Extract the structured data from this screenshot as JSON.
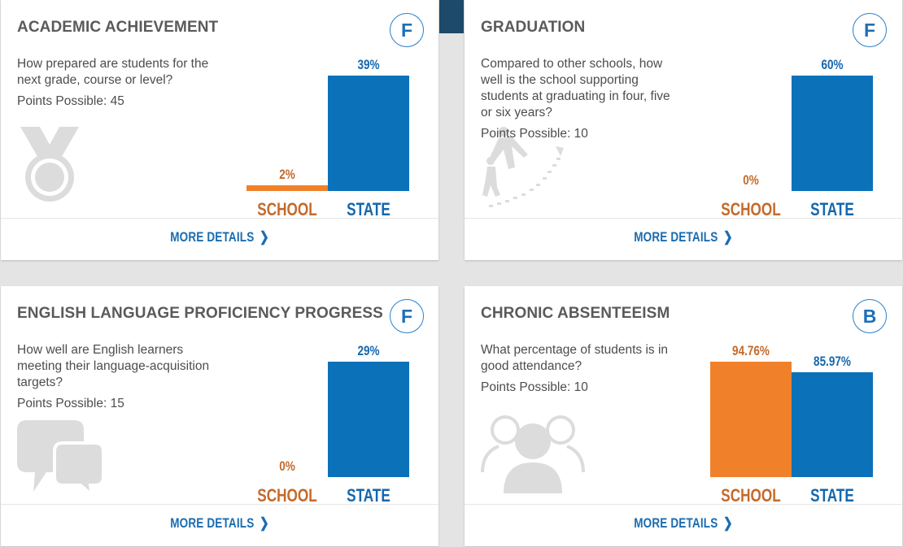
{
  "cards": [
    {
      "title": "ACADEMIC ACHIEVEMENT",
      "grade": "F",
      "description": "How prepared are students for the next grade, course or level?",
      "points": "Points Possible: 45",
      "icon": "medal-icon",
      "more_label": "MORE DETAILS",
      "chart_data": {
        "type": "bar",
        "categories": [
          "SCHOOL",
          "STATE"
        ],
        "values": [
          2,
          39
        ],
        "value_labels": [
          "2%",
          "39%"
        ],
        "unit": "%",
        "colors": [
          "#f0812a",
          "#0b71b9"
        ]
      }
    },
    {
      "title": "GRADUATION",
      "grade": "F",
      "description": "Compared to other schools, how well is the school supporting students at graduating in four, five or six years?",
      "points": "Points Possible: 10",
      "icon": "graduation-climb-icon",
      "more_label": "MORE DETAILS",
      "chart_data": {
        "type": "bar",
        "categories": [
          "SCHOOL",
          "STATE"
        ],
        "values": [
          0,
          60
        ],
        "value_labels": [
          "0%",
          "60%"
        ],
        "unit": "%",
        "colors": [
          "#f0812a",
          "#0b71b9"
        ]
      }
    },
    {
      "title": "ENGLISH LANGUAGE PROFICIENCY PROGRESS",
      "grade": "F",
      "description": "How well are English learners meeting their language-acquisition targets?",
      "points": "Points Possible: 15",
      "icon": "speech-bubbles-icon",
      "more_label": "MORE DETAILS",
      "chart_data": {
        "type": "bar",
        "categories": [
          "SCHOOL",
          "STATE"
        ],
        "values": [
          0,
          29
        ],
        "value_labels": [
          "0%",
          "29%"
        ],
        "unit": "%",
        "colors": [
          "#f0812a",
          "#0b71b9"
        ]
      }
    },
    {
      "title": "CHRONIC ABSENTEEISM",
      "grade": "B",
      "description": "What percentage of students is in good attendance?",
      "points": "Points Possible: 10",
      "icon": "people-group-icon",
      "more_label": "MORE DETAILS",
      "chart_data": {
        "type": "bar",
        "categories": [
          "SCHOOL",
          "STATE"
        ],
        "values": [
          94.76,
          85.97
        ],
        "value_labels": [
          "94.76%",
          "85.97%"
        ],
        "unit": "%",
        "colors": [
          "#f0812a",
          "#0b71b9"
        ]
      }
    }
  ]
}
